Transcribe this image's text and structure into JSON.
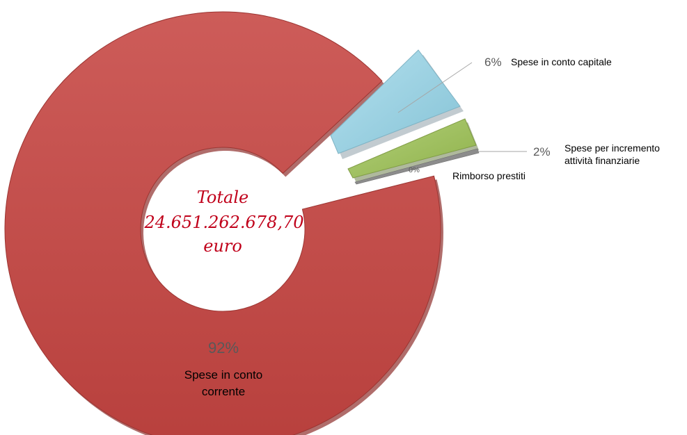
{
  "chart_data": {
    "type": "pie",
    "title": "",
    "center_label": [
      "Totale",
      "24.651.262.678,70",
      "euro"
    ],
    "slices": [
      {
        "pct_label": "92%",
        "value": 92,
        "label_lines": [
          "Spese in conto",
          "corrente"
        ],
        "color": "#c0504d"
      },
      {
        "pct_label": "6%",
        "value": 6,
        "label_lines": [
          "Spese in conto capitale"
        ],
        "color": "#93cddd"
      },
      {
        "pct_label": "2%",
        "value": 2,
        "label_lines": [
          "Spese per incremento",
          "attività finanziarie"
        ],
        "color": "#9bbb59"
      },
      {
        "pct_label": "0%",
        "value": 0,
        "label_lines": [
          "Rimborso prestiti"
        ],
        "color": "#7f7f7f"
      }
    ],
    "legend": "none",
    "grid": false
  }
}
